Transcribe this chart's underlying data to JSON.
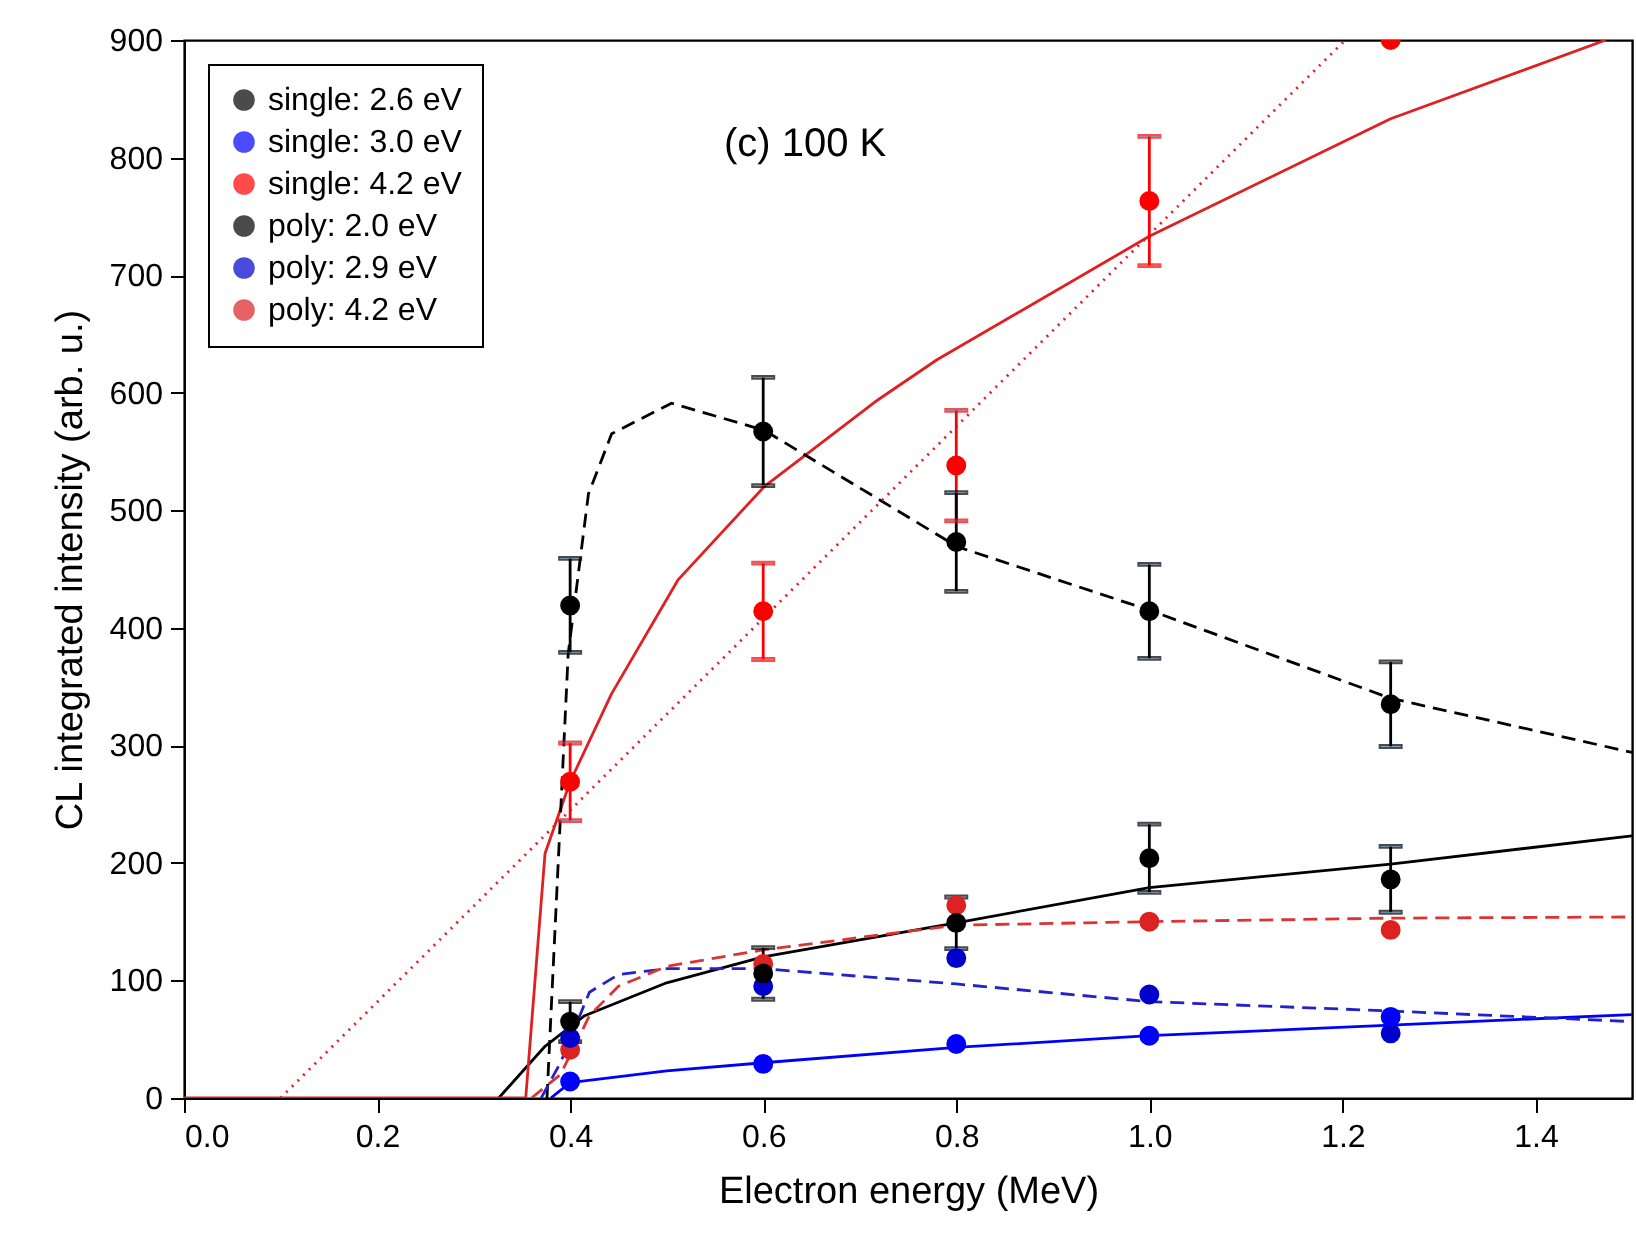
{
  "chart_data": {
    "type": "scatter",
    "xlabel": "Electron energy (MeV)",
    "ylabel": "CL integrated intensity (arb. u.)",
    "annotations": [
      "(c) 100 K"
    ],
    "legend": "top left",
    "marker": "circle",
    "xlim": [
      0,
      1.5
    ],
    "ylim": [
      0,
      900
    ],
    "xticks": [
      {
        "value": 0,
        "label": "0.0"
      },
      0.2,
      0.4,
      0.6,
      0.8,
      {
        "value": 1,
        "label": "1.0"
      },
      1.2,
      1.4
    ],
    "yticks": [
      0,
      100,
      200,
      300,
      400,
      500,
      600,
      700,
      800,
      900
    ],
    "series": [
      {
        "name": "single: 2.6 eV",
        "color": "#000000",
        "x": [
          0.4,
          0.6,
          0.8,
          1.0,
          1.25
        ],
        "values": [
          65,
          106,
          149,
          204,
          186
        ],
        "errors": [
          17,
          22,
          22,
          29,
          28
        ]
      },
      {
        "name": "single: 3.0 eV",
        "color": "#0000ff",
        "x": [
          0.4,
          0.6,
          0.8,
          1.0,
          1.25
        ],
        "values": [
          14,
          29,
          46,
          53,
          69
        ]
      },
      {
        "name": "single: 4.2 eV",
        "color": "#ff0000",
        "x": [
          0.4,
          0.6,
          0.8,
          1.0,
          1.25
        ],
        "values": [
          269,
          414,
          538,
          763,
          900
        ],
        "errors": [
          33,
          41,
          47,
          55,
          null
        ]
      },
      {
        "name": "poly: 2.0 eV",
        "color": "#000000",
        "x": [
          0.4,
          0.6,
          0.8,
          1.0,
          1.25
        ],
        "values": [
          419,
          567,
          473,
          414,
          335
        ],
        "errors": [
          40,
          46,
          42,
          40,
          36
        ]
      },
      {
        "name": "poly: 2.9 eV",
        "color": "#0000cc",
        "x": [
          0.4,
          0.6,
          0.8,
          1.0,
          1.25
        ],
        "values": [
          51,
          95,
          119,
          88,
          55
        ]
      },
      {
        "name": "poly: 4.2 eV",
        "color": "#dd2222",
        "x": [
          0.4,
          0.6,
          0.8,
          1.0,
          1.25
        ],
        "values": [
          41,
          114,
          164,
          150,
          143
        ]
      },
      {
        "type": "line",
        "color": "#000000",
        "line_style": "solid",
        "marker": "none",
        "x": [
          0.326,
          0.374,
          0.415,
          0.5,
          0.6,
          0.8,
          1.0,
          1.25,
          1.5
        ],
        "values": [
          0,
          44,
          70,
          98,
          120,
          149,
          179,
          199,
          223
        ]
      },
      {
        "type": "line",
        "color": "#0000ff",
        "line_style": "solid",
        "marker": "none",
        "x": [
          0.38,
          0.4,
          0.5,
          0.6,
          0.8,
          1.0,
          1.25,
          1.5
        ],
        "values": [
          0,
          13,
          23,
          30,
          43,
          53,
          62,
          71
        ]
      },
      {
        "type": "line",
        "color": "#e02020",
        "line_style": "solid",
        "marker": "none",
        "x": [
          0,
          0.354,
          0.374,
          0.4,
          0.443,
          0.512,
          0.601,
          0.719,
          0.78,
          1.0,
          1.25,
          1.473
        ],
        "values": [
          0,
          0,
          208,
          269,
          344,
          441,
          520,
          594,
          628,
          733,
          833,
          900
        ]
      },
      {
        "type": "line",
        "color": "#000000",
        "line_style": "dashed",
        "marker": "none",
        "x": [
          0.376,
          0.398,
          0.419,
          0.443,
          0.505,
          0.601,
          0.801,
          1.0,
          1.25,
          1.5
        ],
        "values": [
          0,
          378,
          514,
          565,
          591,
          568,
          469,
          415,
          340,
          294
        ]
      },
      {
        "type": "line",
        "color": "#2222cc",
        "line_style": "dashed",
        "marker": "none",
        "x": [
          0.37,
          0.39,
          0.42,
          0.45,
          0.5,
          0.6,
          0.8,
          1.0,
          1.25,
          1.5
        ],
        "values": [
          0,
          30,
          90,
          105,
          110,
          110,
          97,
          82,
          74,
          65
        ]
      },
      {
        "type": "line",
        "color": "#dd3333",
        "line_style": "dashed",
        "marker": "none",
        "x": [
          0.36,
          0.39,
          0.42,
          0.45,
          0.5,
          0.6,
          0.8,
          1.0,
          1.25,
          1.5
        ],
        "values": [
          0,
          20,
          70,
          95,
          112,
          126,
          147,
          150,
          153,
          154
        ]
      },
      {
        "type": "line",
        "color": "#e02020",
        "line_style": "dotted",
        "marker": "none",
        "x": [
          0.1,
          1.203
        ],
        "values": [
          0,
          900
        ]
      }
    ]
  }
}
